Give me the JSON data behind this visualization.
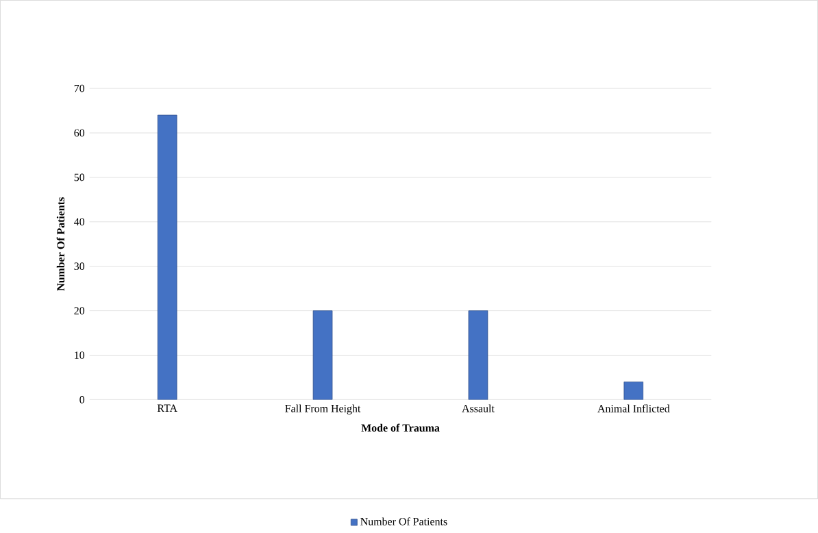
{
  "chart_data": {
    "type": "bar",
    "xlabel": "Mode of Trauma",
    "ylabel": "Number Of Patients",
    "categories": [
      "RTA",
      "Fall From Height",
      "Assault",
      "Animal Inflicted"
    ],
    "series": [
      {
        "name": "Number Of Patients",
        "color": "#4472c4",
        "values": [
          64,
          20,
          20,
          4
        ]
      }
    ],
    "ylim": [
      0,
      70
    ],
    "yticks": [
      0,
      10,
      20,
      30,
      40,
      50,
      60,
      70
    ],
    "grid": "y",
    "legend": "bottom"
  }
}
